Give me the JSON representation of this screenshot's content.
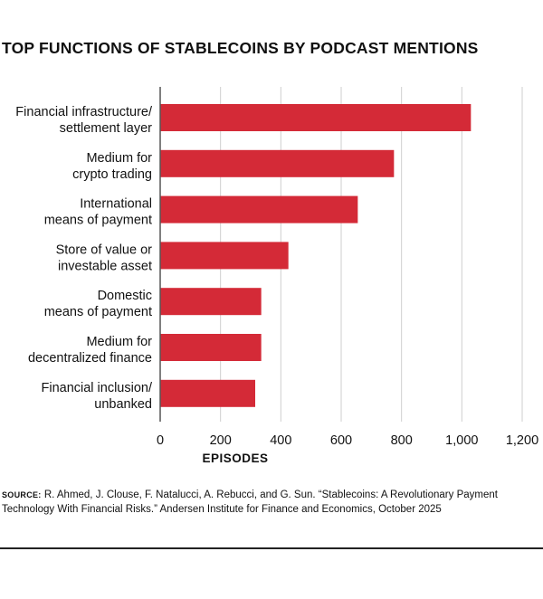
{
  "title": "TOP FUNCTIONS OF STABLECOINS BY PODCAST MENTIONS",
  "source": {
    "label": "SOURCE:",
    "text": "R. Ahmed, J. Clouse, F. Natalucci, A. Rebucci, and G. Sun. “Stablecoins: A Revolutionary Payment Technology With Financial Risks.” Andersen Institute for Finance and Economics, October 2025"
  },
  "colors": {
    "bar": "#d42a37",
    "grid": "#cfcfcf",
    "axis": "#555555",
    "text": "#111111"
  },
  "chart_data": {
    "type": "bar",
    "orientation": "horizontal",
    "title": "TOP FUNCTIONS OF STABLECOINS BY PODCAST MENTIONS",
    "xlabel": "EPISODES",
    "ylabel": "",
    "xlim": [
      0,
      1200
    ],
    "xticks": [
      0,
      200,
      400,
      600,
      800,
      1000,
      1200
    ],
    "xtick_labels": [
      "0",
      "200",
      "400",
      "600",
      "800",
      "1,000",
      "1,200"
    ],
    "grid": "vertical",
    "categories": [
      [
        "Financial infrastructure/",
        "settlement layer"
      ],
      [
        "Medium for",
        "crypto trading"
      ],
      [
        "International",
        "means of payment"
      ],
      [
        "Store of value or",
        "investable asset"
      ],
      [
        "Domestic",
        "means of payment"
      ],
      [
        "Medium for",
        "decentralized finance"
      ],
      [
        "Financial inclusion/",
        "unbanked"
      ]
    ],
    "values": [
      1030,
      775,
      655,
      425,
      335,
      335,
      315
    ]
  }
}
